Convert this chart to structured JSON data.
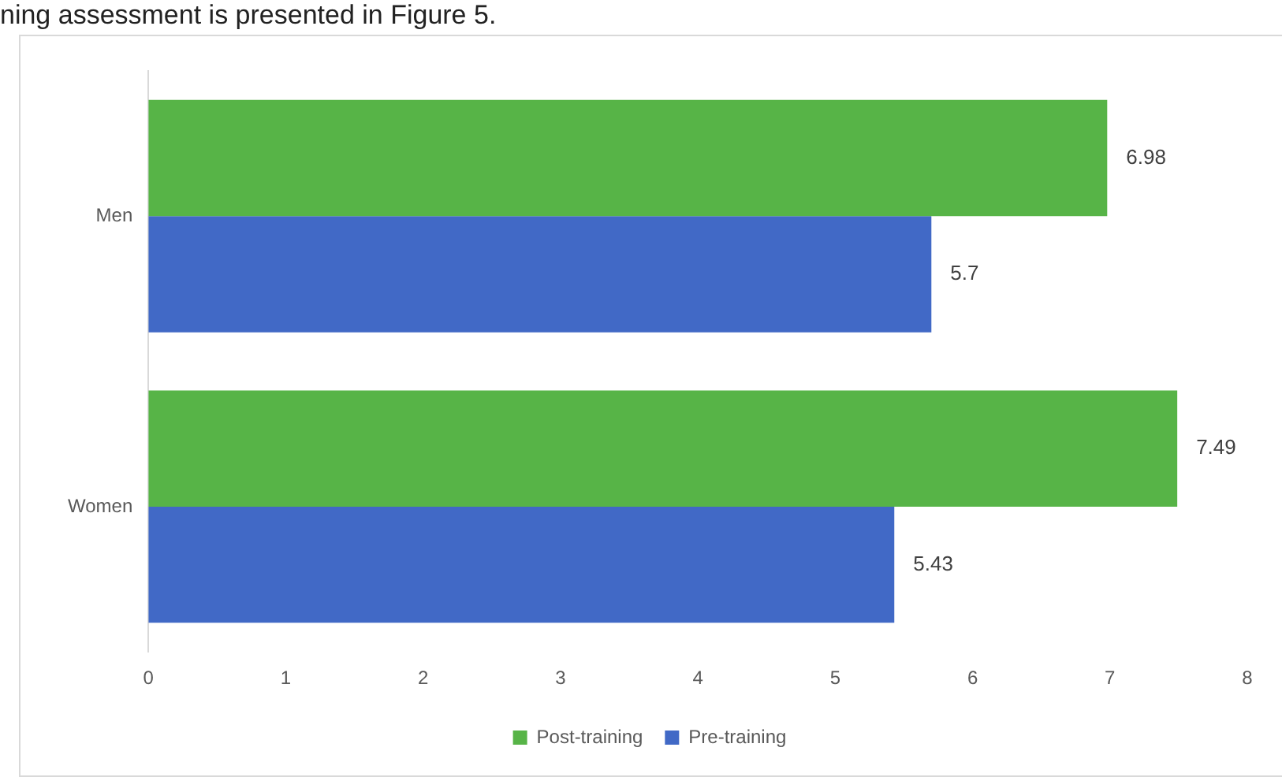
{
  "chart_data": {
    "type": "bar",
    "orientation": "horizontal",
    "categories": [
      "Men",
      "Women"
    ],
    "series": [
      {
        "name": "Post-training",
        "color": "#57b447",
        "values": [
          6.98,
          7.49
        ]
      },
      {
        "name": "Pre-training",
        "color": "#4169c6",
        "values": [
          5.7,
          5.43
        ]
      }
    ],
    "xlim": [
      0,
      8
    ],
    "xticks": [
      0,
      1,
      2,
      3,
      4,
      5,
      6,
      7,
      8
    ],
    "grid": false,
    "legend": "bottom",
    "data_labels": true,
    "annotations": [
      "ning assessment is presented in Figure 5."
    ]
  }
}
